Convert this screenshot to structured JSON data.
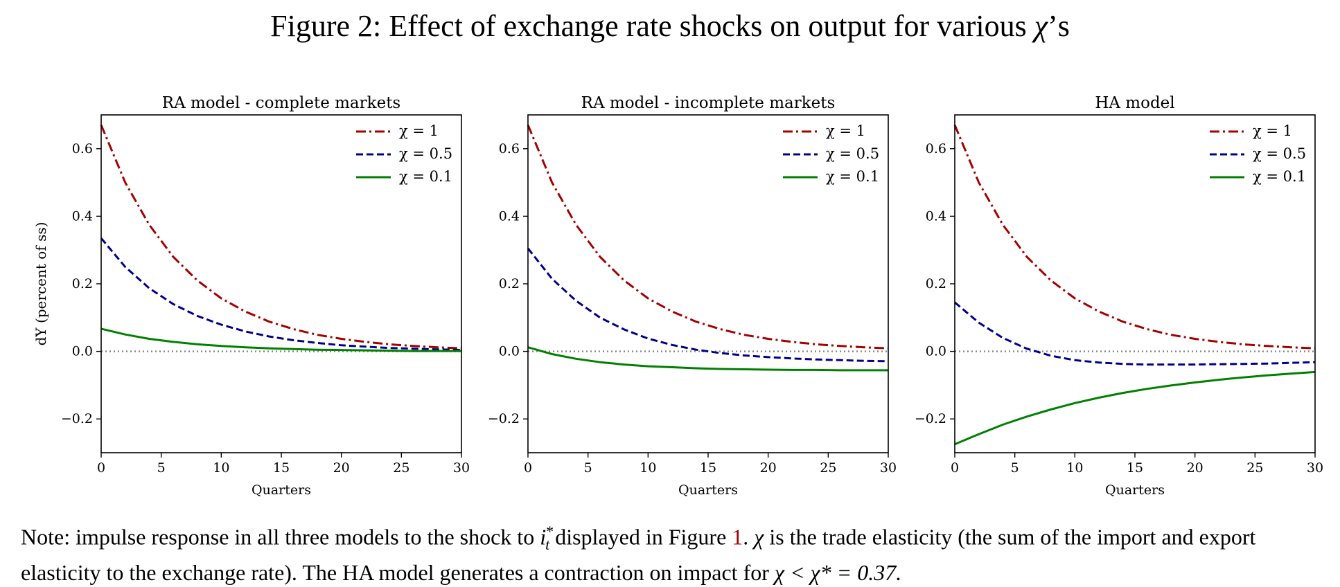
{
  "figure": {
    "title_prefix": "Figure 2: Effect of exchange rate shocks on output for various ",
    "title_symbol": "χ",
    "title_suffix": "’s"
  },
  "note": {
    "part1": "Note: impulse response in all three models to the shock to ",
    "sym_i": "i",
    "sym_i_sub": "t",
    "sym_i_sup": "*",
    "part2": " displayed in Figure ",
    "figure_ref": "1",
    "part3": ". ",
    "sym_chi": "χ",
    "part4": " is the trade elasticity (the sum of the import and export elasticity to the exchange rate). The HA model generates a contraction on impact for ",
    "ineq": "χ < χ* = 0.37."
  },
  "chart_data": [
    {
      "type": "line",
      "title": "RA model - complete markets",
      "xlabel": "Quarters",
      "ylabel": "dY (percent of ss)",
      "xlim": [
        0,
        30
      ],
      "ylim": [
        -0.3,
        0.7
      ],
      "xticks": [
        0,
        5,
        10,
        15,
        20,
        25,
        30
      ],
      "yticks": [
        -0.2,
        0.0,
        0.2,
        0.4,
        0.6
      ],
      "ytick_labels": [
        "−0.2",
        "0.0",
        "0.2",
        "0.4",
        "0.6"
      ],
      "legend_placement": "top-right",
      "zero_line": true,
      "x": [
        0,
        2,
        4,
        6,
        8,
        10,
        12,
        14,
        16,
        18,
        20,
        22,
        24,
        26,
        28,
        30
      ],
      "series": [
        {
          "name": "χ = 1",
          "color": "#a50000",
          "dash": "dashdot",
          "values": [
            0.67,
            0.5,
            0.375,
            0.28,
            0.21,
            0.157,
            0.118,
            0.088,
            0.066,
            0.049,
            0.037,
            0.028,
            0.021,
            0.016,
            0.012,
            0.009
          ]
        },
        {
          "name": "χ = 0.5",
          "color": "#00008b",
          "dash": "dashed",
          "values": [
            0.335,
            0.25,
            0.187,
            0.14,
            0.105,
            0.079,
            0.059,
            0.044,
            0.033,
            0.025,
            0.018,
            0.014,
            0.01,
            0.008,
            0.006,
            0.004
          ]
        },
        {
          "name": "χ = 0.1",
          "color": "#008000",
          "dash": "solid",
          "values": [
            0.067,
            0.05,
            0.037,
            0.028,
            0.021,
            0.016,
            0.012,
            0.009,
            0.007,
            0.005,
            0.004,
            0.003,
            0.002,
            0.001,
            0.001,
            0.001
          ]
        }
      ]
    },
    {
      "type": "line",
      "title": "RA model - incomplete markets",
      "xlabel": "Quarters",
      "xlim": [
        0,
        30
      ],
      "ylim": [
        -0.3,
        0.7
      ],
      "xticks": [
        0,
        5,
        10,
        15,
        20,
        25,
        30
      ],
      "yticks": [
        -0.2,
        0.0,
        0.2,
        0.4,
        0.6
      ],
      "ytick_labels": [
        "−0.2",
        "0.0",
        "0.2",
        "0.4",
        "0.6"
      ],
      "legend_placement": "top-right",
      "zero_line": true,
      "x": [
        0,
        2,
        4,
        6,
        8,
        10,
        12,
        14,
        16,
        18,
        20,
        22,
        24,
        26,
        28,
        30
      ],
      "series": [
        {
          "name": "χ = 1",
          "color": "#a50000",
          "dash": "dashdot",
          "values": [
            0.67,
            0.5,
            0.375,
            0.28,
            0.21,
            0.157,
            0.118,
            0.088,
            0.066,
            0.049,
            0.037,
            0.028,
            0.021,
            0.016,
            0.012,
            0.009
          ]
        },
        {
          "name": "χ = 0.5",
          "color": "#00008b",
          "dash": "dashed",
          "values": [
            0.305,
            0.215,
            0.15,
            0.1,
            0.065,
            0.038,
            0.019,
            0.005,
            -0.005,
            -0.012,
            -0.017,
            -0.021,
            -0.024,
            -0.026,
            -0.028,
            -0.029
          ]
        },
        {
          "name": "χ = 0.1",
          "color": "#008000",
          "dash": "solid",
          "values": [
            0.012,
            -0.008,
            -0.022,
            -0.032,
            -0.039,
            -0.044,
            -0.047,
            -0.05,
            -0.052,
            -0.053,
            -0.054,
            -0.055,
            -0.055,
            -0.056,
            -0.056,
            -0.056
          ]
        }
      ]
    },
    {
      "type": "line",
      "title": "HA model",
      "xlabel": "Quarters",
      "xlim": [
        0,
        30
      ],
      "ylim": [
        -0.3,
        0.7
      ],
      "xticks": [
        0,
        5,
        10,
        15,
        20,
        25,
        30
      ],
      "yticks": [
        -0.2,
        0.0,
        0.2,
        0.4,
        0.6
      ],
      "ytick_labels": [
        "−0.2",
        "0.0",
        "0.2",
        "0.4",
        "0.6"
      ],
      "legend_placement": "top-right",
      "zero_line": true,
      "x": [
        0,
        2,
        4,
        6,
        8,
        10,
        12,
        14,
        16,
        18,
        20,
        22,
        24,
        26,
        28,
        30
      ],
      "series": [
        {
          "name": "χ = 1",
          "color": "#a50000",
          "dash": "dashdot",
          "values": [
            0.67,
            0.5,
            0.375,
            0.28,
            0.21,
            0.157,
            0.118,
            0.088,
            0.066,
            0.049,
            0.037,
            0.028,
            0.021,
            0.016,
            0.012,
            0.009
          ]
        },
        {
          "name": "χ = 0.5",
          "color": "#00008b",
          "dash": "dashed",
          "values": [
            0.145,
            0.085,
            0.04,
            0.008,
            -0.013,
            -0.026,
            -0.033,
            -0.037,
            -0.039,
            -0.039,
            -0.039,
            -0.038,
            -0.037,
            -0.036,
            -0.034,
            -0.032
          ]
        },
        {
          "name": "χ = 0.1",
          "color": "#008000",
          "dash": "solid",
          "values": [
            -0.275,
            -0.245,
            -0.217,
            -0.193,
            -0.172,
            -0.153,
            -0.137,
            -0.123,
            -0.111,
            -0.101,
            -0.092,
            -0.084,
            -0.077,
            -0.071,
            -0.066,
            -0.061
          ]
        }
      ]
    }
  ]
}
